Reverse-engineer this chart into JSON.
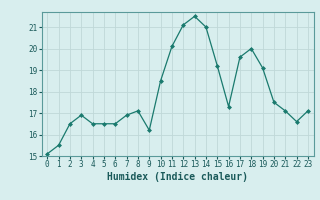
{
  "x": [
    0,
    1,
    2,
    3,
    4,
    5,
    6,
    7,
    8,
    9,
    10,
    11,
    12,
    13,
    14,
    15,
    16,
    17,
    18,
    19,
    20,
    21,
    22,
    23
  ],
  "y": [
    15.1,
    15.5,
    16.5,
    16.9,
    16.5,
    16.5,
    16.5,
    16.9,
    17.1,
    16.2,
    18.5,
    20.1,
    21.1,
    21.5,
    21.0,
    19.2,
    17.3,
    19.6,
    20.0,
    19.1,
    17.5,
    17.1,
    16.6,
    17.1
  ],
  "line_color": "#1a7a6e",
  "marker_color": "#1a7a6e",
  "bg_color": "#d8eeee",
  "grid_color": "#c0d8d8",
  "xlabel": "Humidex (Indice chaleur)",
  "ylim": [
    15,
    21.7
  ],
  "xlim": [
    -0.5,
    23.5
  ],
  "yticks": [
    15,
    16,
    17,
    18,
    19,
    20,
    21
  ],
  "xticks": [
    0,
    1,
    2,
    3,
    4,
    5,
    6,
    7,
    8,
    9,
    10,
    11,
    12,
    13,
    14,
    15,
    16,
    17,
    18,
    19,
    20,
    21,
    22,
    23
  ],
  "tick_color": "#1a5a5a",
  "spine_color": "#5a9a9a",
  "xlabel_fontsize": 7,
  "tick_fontsize": 5.5
}
